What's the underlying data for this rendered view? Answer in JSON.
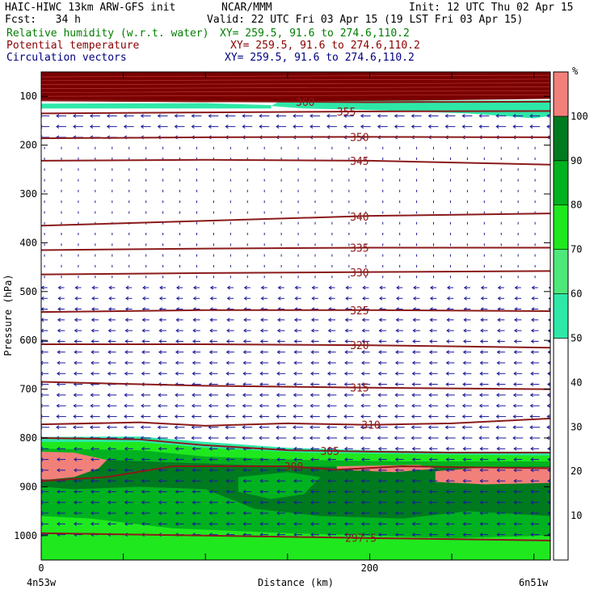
{
  "header": {
    "title_left": "HAIC-HIWC 13km ARW-GFS init",
    "org": "NCAR/MMM",
    "init": "Init: 12 UTC Thu 02 Apr 15",
    "fcst": "Fcst:   34 h",
    "valid": "Valid: 22 UTC Fri 03 Apr 15 (19 LST Fri 03 Apr 15)",
    "rh_label": "Relative humidity (w.r.t. water)",
    "rh_xy": "XY= 259.5, 91.6 to 274.6,110.2",
    "theta_label": "Potential temperature",
    "theta_xy": "XY= 259.5, 91.6 to 274.6,110.2",
    "vec_label": "Circulation vectors",
    "vec_xy": "XY= 259.5, 91.6 to 274.6,110.2"
  },
  "colors": {
    "rh_label": "#007f00",
    "theta_label": "#8b0000",
    "vec_label": "#00007f",
    "theta_line": "#8b1a1a",
    "vector": "#1a1a9a",
    "rh_100": "#7a0000",
    "rh_90": "#007a1f",
    "rh_80": "#00b21f",
    "rh_70": "#1fe81f",
    "rh_60": "#4ee87a",
    "rh_50": "#2ee8a8",
    "supersat": "#f2807a"
  },
  "chart_data": {
    "type": "cross-section",
    "xlabel": "Distance (km)",
    "ylabel": "Pressure (hPa)",
    "x_ticks": [
      "0",
      "200"
    ],
    "x_tick_values": [
      0,
      200
    ],
    "xlim": [
      0,
      310
    ],
    "y_ticks": [
      "100",
      "200",
      "300",
      "400",
      "500",
      "600",
      "700",
      "800",
      "900",
      "1000"
    ],
    "y_tick_values": [
      100,
      200,
      300,
      400,
      500,
      600,
      700,
      800,
      900,
      1000
    ],
    "ylim": [
      50,
      1050
    ],
    "start_label": "4n53w",
    "end_label": "6n51w",
    "colorbar": {
      "unit": "%",
      "labels": [
        "10",
        "20",
        "30",
        "40",
        "50",
        "60",
        "70",
        "80",
        "90",
        "100"
      ],
      "bins": [
        {
          "from": 0,
          "to": 50,
          "color": "#ffffff"
        },
        {
          "from": 50,
          "to": 60,
          "color": "#2ee8a8"
        },
        {
          "from": 60,
          "to": 70,
          "color": "#4ee87a"
        },
        {
          "from": 70,
          "to": 80,
          "color": "#1fe81f"
        },
        {
          "from": 80,
          "to": 90,
          "color": "#00b21f"
        },
        {
          "from": 90,
          "to": 100,
          "color": "#007a1f"
        },
        {
          "from": 100,
          "to": 110,
          "color": "#f2807a"
        }
      ]
    },
    "isentropes": [
      {
        "label": "360",
        "label_x": 155,
        "points": [
          [
            0,
            108
          ],
          [
            100,
            110
          ],
          [
            200,
            112
          ],
          [
            310,
            111
          ]
        ]
      },
      {
        "label": "355",
        "label_x": 180,
        "points": [
          [
            0,
            135
          ],
          [
            100,
            133
          ],
          [
            200,
            131
          ],
          [
            310,
            130
          ]
        ]
      },
      {
        "label": "350",
        "label_x": 188,
        "points": [
          [
            0,
            186
          ],
          [
            100,
            184
          ],
          [
            200,
            183
          ],
          [
            310,
            184
          ]
        ]
      },
      {
        "label": "345",
        "label_x": 188,
        "points": [
          [
            0,
            232
          ],
          [
            100,
            230
          ],
          [
            200,
            232
          ],
          [
            310,
            240
          ]
        ]
      },
      {
        "label": "340",
        "label_x": 188,
        "points": [
          [
            0,
            365
          ],
          [
            100,
            355
          ],
          [
            200,
            345
          ],
          [
            310,
            340
          ]
        ]
      },
      {
        "label": "335",
        "label_x": 188,
        "points": [
          [
            0,
            415
          ],
          [
            100,
            412
          ],
          [
            200,
            410
          ],
          [
            310,
            410
          ]
        ]
      },
      {
        "label": "330",
        "label_x": 188,
        "points": [
          [
            0,
            465
          ],
          [
            100,
            462
          ],
          [
            200,
            460
          ],
          [
            310,
            458
          ]
        ]
      },
      {
        "label": "325",
        "label_x": 188,
        "points": [
          [
            0,
            542
          ],
          [
            100,
            538
          ],
          [
            200,
            538
          ],
          [
            310,
            540
          ]
        ]
      },
      {
        "label": "320",
        "label_x": 188,
        "points": [
          [
            0,
            608
          ],
          [
            100,
            608
          ],
          [
            200,
            610
          ],
          [
            310,
            615
          ]
        ]
      },
      {
        "label": "315",
        "label_x": 188,
        "points": [
          [
            0,
            685
          ],
          [
            100,
            693
          ],
          [
            200,
            697
          ],
          [
            310,
            700
          ]
        ]
      },
      {
        "label": "310",
        "label_x": 195,
        "points": [
          [
            0,
            772
          ],
          [
            60,
            768
          ],
          [
            100,
            775
          ],
          [
            150,
            770
          ],
          [
            200,
            773
          ],
          [
            250,
            770
          ],
          [
            310,
            760
          ]
        ]
      },
      {
        "label": "305",
        "label_x": 170,
        "points": [
          [
            0,
            800
          ],
          [
            60,
            803
          ],
          [
            100,
            815
          ],
          [
            150,
            825
          ],
          [
            200,
            828
          ],
          [
            250,
            830
          ],
          [
            310,
            830
          ]
        ]
      },
      {
        "label": "300",
        "label_x": 148,
        "points": [
          [
            0,
            888
          ],
          [
            40,
            880
          ],
          [
            80,
            858
          ],
          [
            150,
            858
          ],
          [
            180,
            865
          ],
          [
            220,
            858
          ],
          [
            260,
            860
          ],
          [
            310,
            862
          ]
        ]
      },
      {
        "label": "297.5",
        "label_x": 185,
        "points": [
          [
            0,
            995
          ],
          [
            100,
            1000
          ],
          [
            200,
            1005
          ],
          [
            310,
            1010
          ]
        ]
      }
    ],
    "rh_regions": [
      {
        "bin": "100+",
        "color": "#7a0000",
        "points": [
          [
            0,
            50
          ],
          [
            310,
            50
          ],
          [
            310,
            105
          ],
          [
            200,
            110
          ],
          [
            100,
            112
          ],
          [
            0,
            110
          ]
        ]
      },
      {
        "bin": "50-60",
        "color": "#2ee8a8",
        "points": [
          [
            145,
            110
          ],
          [
            310,
            108
          ],
          [
            310,
            140
          ],
          [
            300,
            145
          ],
          [
            260,
            135
          ],
          [
            200,
            128
          ],
          [
            160,
            125
          ],
          [
            140,
            120
          ]
        ]
      },
      {
        "bin": "50-60",
        "color": "#2ee8a8",
        "points": [
          [
            0,
            115
          ],
          [
            100,
            114
          ],
          [
            140,
            118
          ],
          [
            140,
            125
          ],
          [
            0,
            125
          ]
        ]
      },
      {
        "bin": "50-60",
        "color": "#2ee8a8",
        "points": [
          [
            0,
            798
          ],
          [
            60,
            797
          ],
          [
            100,
            808
          ],
          [
            150,
            820
          ],
          [
            200,
            825
          ],
          [
            250,
            828
          ],
          [
            310,
            828
          ],
          [
            310,
            1050
          ],
          [
            0,
            1050
          ]
        ]
      },
      {
        "bin": "70-80",
        "color": "#1fe81f",
        "points": [
          [
            0,
            808
          ],
          [
            60,
            808
          ],
          [
            100,
            820
          ],
          [
            160,
            830
          ],
          [
            220,
            833
          ],
          [
            310,
            836
          ],
          [
            310,
            1050
          ],
          [
            0,
            1050
          ]
        ]
      },
      {
        "bin": "80-90",
        "color": "#00b21f",
        "points": [
          [
            0,
            822
          ],
          [
            60,
            825
          ],
          [
            100,
            838
          ],
          [
            160,
            845
          ],
          [
            220,
            848
          ],
          [
            310,
            848
          ],
          [
            310,
            1000
          ],
          [
            250,
            1005
          ],
          [
            200,
            1000
          ],
          [
            150,
            995
          ],
          [
            80,
            985
          ],
          [
            30,
            965
          ],
          [
            0,
            960
          ]
        ]
      },
      {
        "bin": "90-100",
        "color": "#007a1f",
        "points": [
          [
            0,
            840
          ],
          [
            80,
            850
          ],
          [
            150,
            858
          ],
          [
            230,
            860
          ],
          [
            310,
            858
          ],
          [
            310,
            960
          ],
          [
            260,
            950
          ],
          [
            220,
            965
          ],
          [
            170,
            960
          ],
          [
            130,
            945
          ],
          [
            100,
            905
          ],
          [
            60,
            900
          ],
          [
            20,
            905
          ],
          [
            0,
            900
          ]
        ]
      },
      {
        "bin": "80-90",
        "color": "#00b21f",
        "points": [
          [
            120,
            880
          ],
          [
            150,
            870
          ],
          [
            170,
            880
          ],
          [
            160,
            915
          ],
          [
            140,
            925
          ],
          [
            120,
            910
          ]
        ]
      },
      {
        "bin": "100+",
        "color": "#f2807a",
        "points": [
          [
            0,
            828
          ],
          [
            20,
            830
          ],
          [
            40,
            845
          ],
          [
            35,
            862
          ],
          [
            20,
            880
          ],
          [
            5,
            885
          ],
          [
            0,
            885
          ]
        ]
      },
      {
        "bin": "100+",
        "color": "#f2807a",
        "points": [
          [
            180,
            858
          ],
          [
            230,
            855
          ],
          [
            240,
            863
          ],
          [
            215,
            870
          ],
          [
            180,
            865
          ]
        ]
      },
      {
        "bin": "100+",
        "color": "#f2807a",
        "points": [
          [
            240,
            868
          ],
          [
            270,
            860
          ],
          [
            310,
            860
          ],
          [
            310,
            892
          ],
          [
            270,
            895
          ],
          [
            240,
            890
          ]
        ]
      }
    ]
  }
}
